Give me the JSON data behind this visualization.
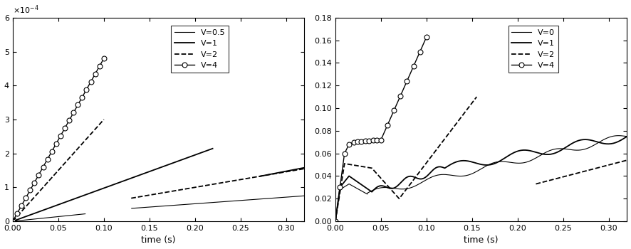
{
  "left_plot": {
    "xlabel": "time (s)",
    "ylim": [
      0,
      0.0006
    ],
    "xlim": [
      0,
      0.32
    ],
    "legend": [
      "V=0.5",
      "V=1",
      "V=2",
      "V=4"
    ],
    "yticks": [
      0,
      0.0001,
      0.0002,
      0.0003,
      0.0004,
      0.0005,
      0.0006
    ],
    "xticks": [
      0,
      0.05,
      0.1,
      0.15,
      0.2,
      0.25,
      0.3
    ]
  },
  "right_plot": {
    "xlabel": "time (s)",
    "ylim": [
      0,
      0.18
    ],
    "xlim": [
      0,
      0.32
    ],
    "legend": [
      "V=0",
      "V=1",
      "V=2",
      "V=4"
    ],
    "yticks": [
      0,
      0.02,
      0.04,
      0.06,
      0.08,
      0.1,
      0.12,
      0.14,
      0.16,
      0.18
    ],
    "xticks": [
      0,
      0.05,
      0.1,
      0.15,
      0.2,
      0.25,
      0.3
    ]
  },
  "figsize": [
    8.86,
    3.5
  ],
  "dpi": 100
}
